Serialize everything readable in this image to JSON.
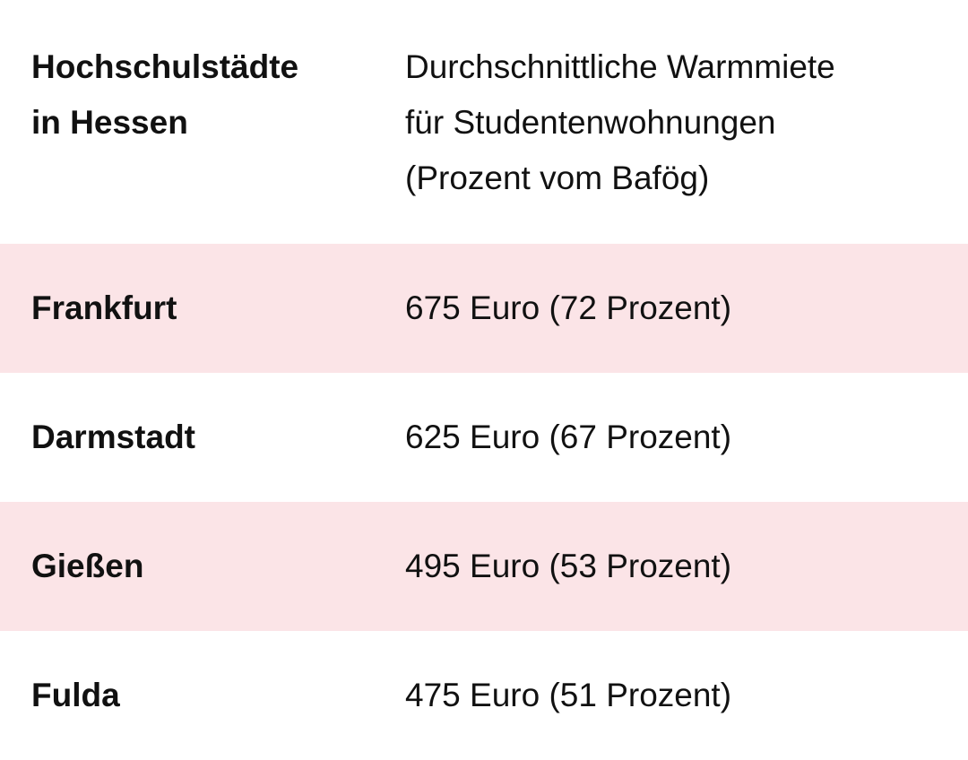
{
  "table": {
    "header": {
      "city": "Hochschulstädte\nin Hessen",
      "rent": "Durchschnittliche Warmmiete\nfür Studentenwohnungen\n(Prozent vom Bafög)"
    },
    "rows": [
      {
        "city": "Frankfurt",
        "rent": "675 Euro (72 Prozent)"
      },
      {
        "city": "Darmstadt",
        "rent": "625 Euro (67 Prozent)"
      },
      {
        "city": "Gießen",
        "rent": "495 Euro (53 Prozent)"
      },
      {
        "city": "Fulda",
        "rent": "475 Euro (51 Prozent)"
      }
    ],
    "colors": {
      "shaded_row": "#fbe4e7",
      "text": "#111111"
    }
  }
}
